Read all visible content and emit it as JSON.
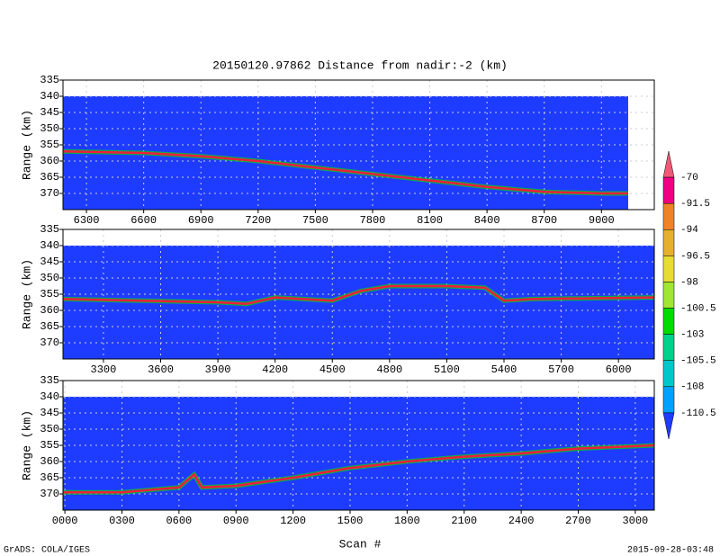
{
  "title": "20150120.97862   Distance from nadir:-2 (km)",
  "xlabel": "Scan #",
  "footer_left": "GrADS: COLA/IGES",
  "footer_right": "2015-09-28-03:48",
  "colorbar": {
    "labels": [
      -70,
      -91.5,
      -94,
      -96.5,
      -98,
      -100.5,
      -103,
      -105.5,
      -108,
      -110.5
    ],
    "colors": [
      "#f05a78",
      "#f00082",
      "#f08228",
      "#e6af2d",
      "#e6dc32",
      "#a0e632",
      "#00dc00",
      "#00d28c",
      "#00c8c8",
      "#00a0ff",
      "#1e3cff"
    ]
  },
  "chart_data": [
    {
      "type": "line",
      "ylabel": "Range (km)",
      "y_inverted": true,
      "grid": true,
      "background": "#1e3cff",
      "xlim": [
        6177,
        9277
      ],
      "ylim": [
        335,
        375
      ],
      "xticks": [
        6300,
        6600,
        6900,
        7200,
        7500,
        7800,
        8100,
        8400,
        8700,
        9000
      ],
      "yticks": [
        335,
        340,
        345,
        350,
        355,
        360,
        365,
        370
      ],
      "series": [
        {
          "name": "surface",
          "color": "#f01e3c",
          "x": [
            6177,
            6600,
            6900,
            7200,
            7500,
            7800,
            8100,
            8400,
            8700,
            9000,
            9140
          ],
          "values": [
            357,
            357.5,
            358.5,
            360,
            362,
            364,
            366,
            368,
            369.5,
            370,
            370
          ]
        }
      ]
    },
    {
      "type": "line",
      "ylabel": "Range (km)",
      "y_inverted": true,
      "grid": true,
      "background": "#1e3cff",
      "xlim": [
        3088,
        6188
      ],
      "ylim": [
        335,
        375
      ],
      "xticks": [
        3300,
        3600,
        3900,
        4200,
        4500,
        4800,
        5100,
        5400,
        5700,
        6000
      ],
      "yticks": [
        335,
        340,
        345,
        350,
        355,
        360,
        365,
        370
      ],
      "series": [
        {
          "name": "surface",
          "color": "#f01e3c",
          "x": [
            3088,
            3500,
            3900,
            4050,
            4200,
            4500,
            4650,
            4800,
            5100,
            5300,
            5400,
            5550,
            6188
          ],
          "values": [
            356.5,
            357,
            357.5,
            358,
            356,
            357,
            354,
            352.5,
            352.5,
            353,
            357,
            356.5,
            356
          ]
        }
      ]
    },
    {
      "type": "line",
      "ylabel": "Range (km)",
      "y_inverted": true,
      "grid": true,
      "background": "#1e3cff",
      "xlim": [
        -10,
        3100
      ],
      "ylim": [
        335,
        375
      ],
      "xticks": [
        {
          "value": 0,
          "label": "0000"
        },
        {
          "value": 300,
          "label": "0300"
        },
        {
          "value": 600,
          "label": "0600"
        },
        {
          "value": 900,
          "label": "0900"
        },
        1200,
        1500,
        1800,
        2100,
        2400,
        2700,
        3000
      ],
      "yticks": [
        335,
        340,
        345,
        350,
        355,
        360,
        365,
        370
      ],
      "series": [
        {
          "name": "surface",
          "color": "#f01e3c",
          "x": [
            -10,
            300,
            600,
            680,
            720,
            900,
            1200,
            1500,
            1800,
            2100,
            2400,
            2700,
            3100
          ],
          "values": [
            369.5,
            369.5,
            368,
            364,
            368,
            367.5,
            365,
            362,
            360,
            358.5,
            357.5,
            356,
            355
          ]
        }
      ]
    }
  ]
}
